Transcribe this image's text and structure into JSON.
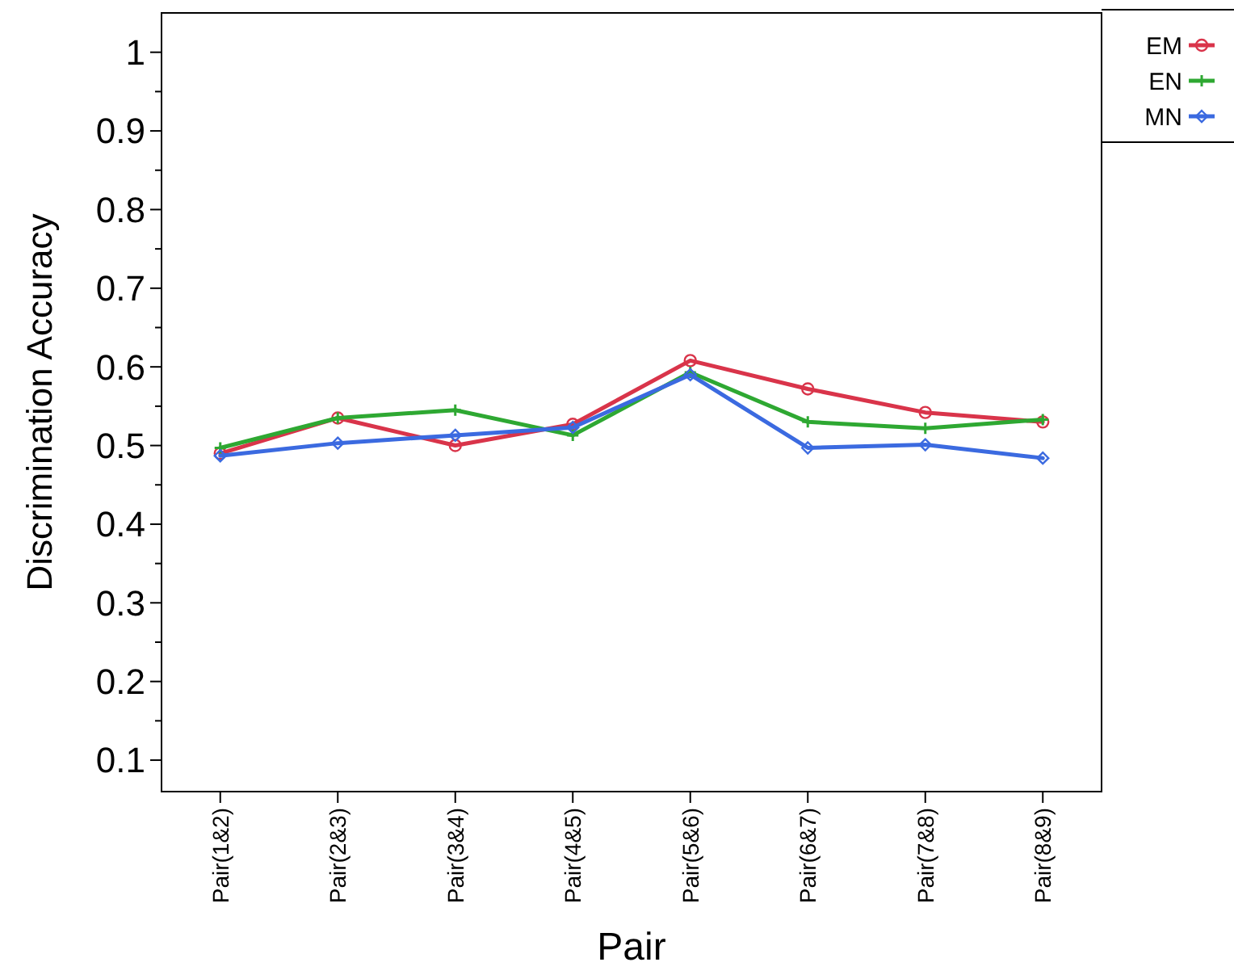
{
  "chart_data": {
    "type": "line",
    "xlabel": "Pair",
    "ylabel": "Discrimination Accuracy",
    "categories": [
      "Pair(1&2)",
      "Pair(2&3)",
      "Pair(3&4)",
      "Pair(4&5)",
      "Pair(5&6)",
      "Pair(6&7)",
      "Pair(7&8)",
      "Pair(8&9)"
    ],
    "series": [
      {
        "name": "EM",
        "color": "#d9344a",
        "marker": "circle",
        "values": [
          0.49,
          0.535,
          0.5,
          0.527,
          0.608,
          0.572,
          0.542,
          0.53
        ]
      },
      {
        "name": "EN",
        "color": "#2ea832",
        "marker": "cross",
        "values": [
          0.497,
          0.535,
          0.545,
          0.513,
          0.593,
          0.53,
          0.522,
          0.533
        ]
      },
      {
        "name": "MN",
        "color": "#3b6ae0",
        "marker": "diamond",
        "values": [
          0.487,
          0.503,
          0.513,
          0.523,
          0.59,
          0.497,
          0.501,
          0.484
        ]
      }
    ],
    "ylim": [
      0.06,
      1.05
    ],
    "yticks": [
      0.1,
      {
        "value": 0.15,
        "label": null
      },
      0.2,
      {
        "value": 0.25,
        "label": null
      },
      0.3,
      {
        "value": 0.35,
        "label": null
      },
      0.4,
      {
        "value": 0.45,
        "label": null
      },
      0.5,
      {
        "value": 0.55,
        "label": null
      },
      0.6,
      {
        "value": 0.65,
        "label": null
      },
      0.7,
      {
        "value": 0.75,
        "label": null
      },
      0.8,
      {
        "value": 0.85,
        "label": null
      },
      0.9,
      {
        "value": 0.95,
        "label": null
      },
      1
    ],
    "grid": false,
    "legend": "top right",
    "line_style": "solid"
  }
}
